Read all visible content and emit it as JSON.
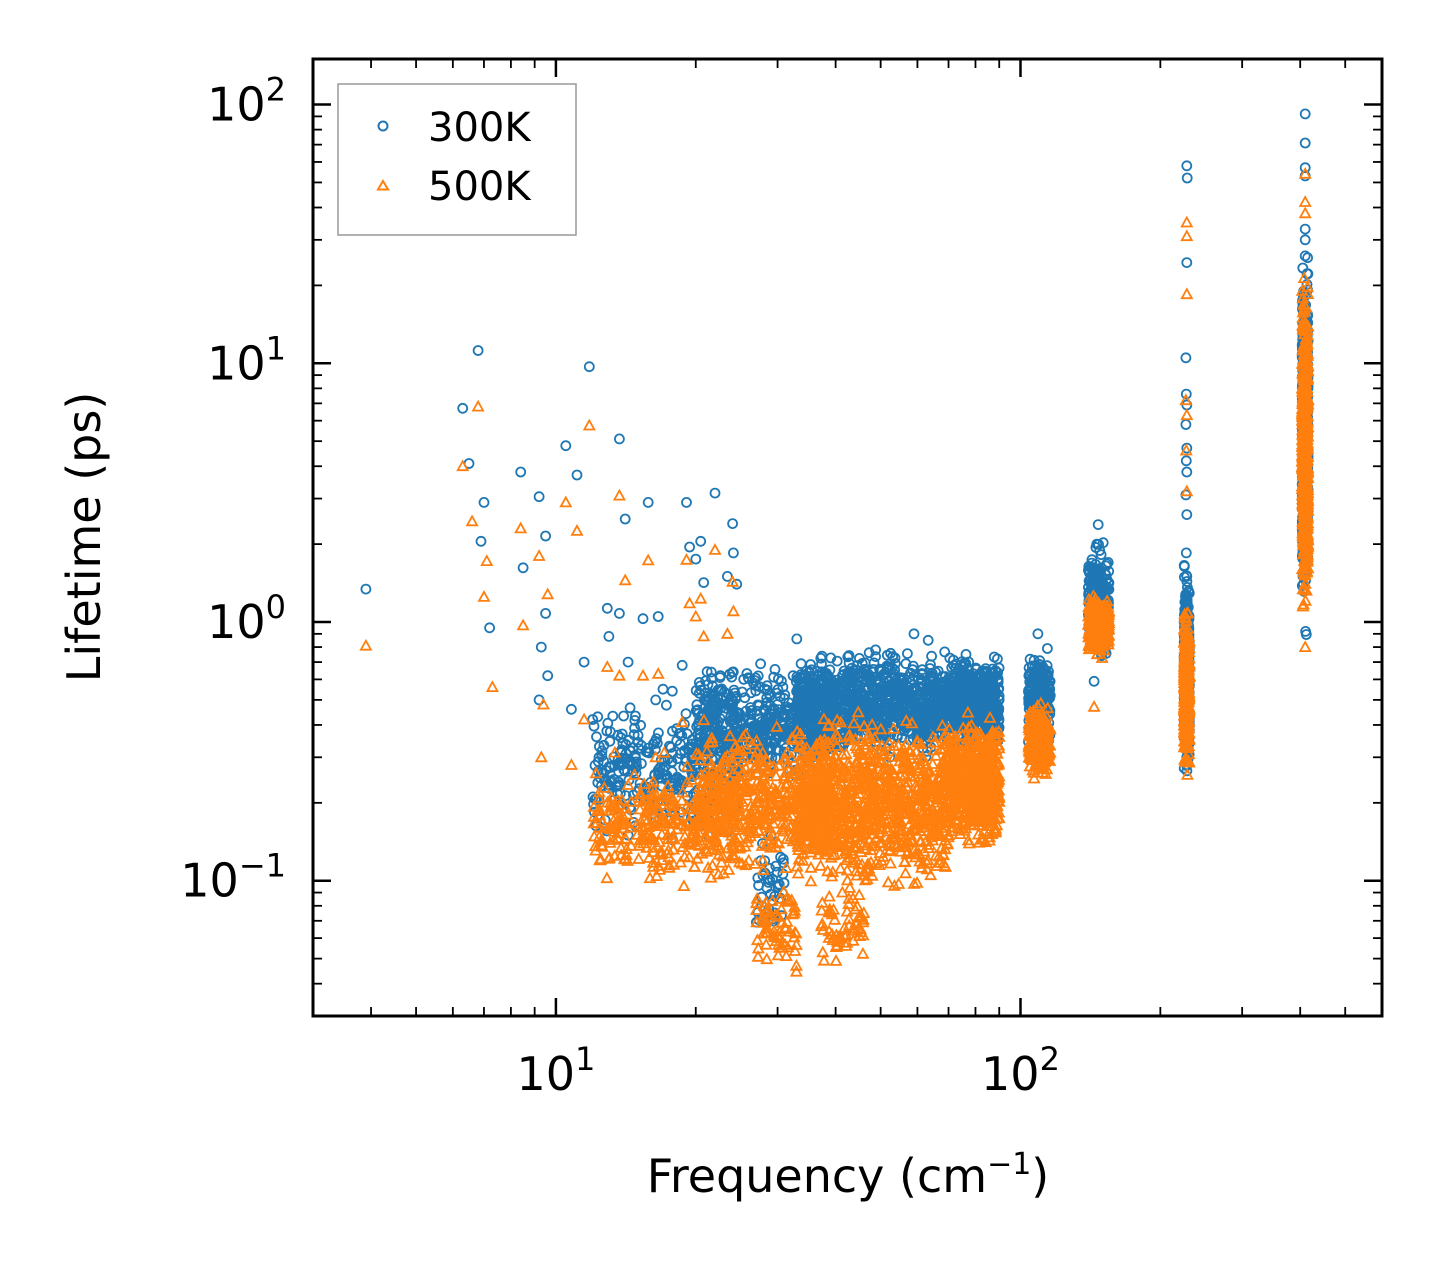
{
  "chart_data": {
    "type": "scatter",
    "x_scale": "log",
    "y_scale": "log",
    "xlabel": "Frequency (cm",
    "xlabel_sup": "−1",
    "xlabel_tail": ")",
    "ylabel": "Lifetime (ps)",
    "xlim": [
      3.0,
      600
    ],
    "ylim": [
      0.03,
      150
    ],
    "x_ticks": [
      {
        "base": "10",
        "exp": "1",
        "value": 10
      },
      {
        "base": "10",
        "exp": "2",
        "value": 100
      }
    ],
    "y_ticks": [
      {
        "base": "10",
        "exp": "−1",
        "value": 0.1
      },
      {
        "base": "10",
        "exp": "0",
        "value": 1
      },
      {
        "base": "10",
        "exp": "1",
        "value": 10
      },
      {
        "base": "10",
        "exp": "2",
        "value": 100
      }
    ],
    "legend_position": "top-left",
    "series": [
      {
        "name": "300K",
        "marker": "circle",
        "color": "#1f77b4",
        "points": [
          [
            3.9,
            1.34
          ],
          [
            6.3,
            6.7
          ],
          [
            6.5,
            4.1
          ],
          [
            6.8,
            11.2
          ],
          [
            6.9,
            2.05
          ],
          [
            7.0,
            2.9
          ],
          [
            7.2,
            0.95
          ],
          [
            8.4,
            3.8
          ],
          [
            8.5,
            1.62
          ],
          [
            9.2,
            3.05
          ],
          [
            9.2,
            0.5
          ],
          [
            9.3,
            0.8
          ],
          [
            9.5,
            1.08
          ],
          [
            9.5,
            2.15
          ],
          [
            9.6,
            0.62
          ],
          [
            10.5,
            4.8
          ],
          [
            10.8,
            0.46
          ],
          [
            11.1,
            3.7
          ],
          [
            11.5,
            0.7
          ],
          [
            11.8,
            9.7
          ],
          [
            12.0,
            0.42
          ],
          [
            12.3,
            0.43
          ],
          [
            12.9,
            1.13
          ],
          [
            13.0,
            0.88
          ],
          [
            13.7,
            1.08
          ],
          [
            13.7,
            5.1
          ],
          [
            14.1,
            2.5
          ],
          [
            14.3,
            0.7
          ],
          [
            15.4,
            1.03
          ],
          [
            15.8,
            2.9
          ],
          [
            16.4,
            0.5
          ],
          [
            16.6,
            1.05
          ],
          [
            17.0,
            0.55
          ],
          [
            17.4,
            0.25
          ],
          [
            17.8,
            0.54
          ],
          [
            18.7,
            0.68
          ],
          [
            19.1,
            2.9
          ],
          [
            19.4,
            1.95
          ],
          [
            20.0,
            1.75
          ],
          [
            20.5,
            2.05
          ],
          [
            20.8,
            1.42
          ],
          [
            21.6,
            0.64
          ],
          [
            22.0,
            3.15
          ],
          [
            22.6,
            0.62
          ],
          [
            23.4,
            1.5
          ],
          [
            24.0,
            2.4
          ],
          [
            24.1,
            1.85
          ],
          [
            24.5,
            1.4
          ],
          [
            33.0,
            0.86
          ],
          [
            59.0,
            0.9
          ],
          [
            63.3,
            0.85
          ],
          [
            109.0,
            0.9
          ],
          [
            147.0,
            2.38
          ],
          [
            146.0,
            2.0
          ],
          [
            144.0,
            0.59
          ],
          [
            228.0,
            58
          ],
          [
            228.5,
            52
          ],
          [
            228.0,
            24.5
          ],
          [
            227.0,
            10.5
          ],
          [
            227.5,
            7.6
          ],
          [
            228.0,
            6.9
          ],
          [
            227.0,
            5.8
          ],
          [
            228.0,
            4.7
          ],
          [
            227.5,
            4.2
          ],
          [
            228.0,
            3.8
          ],
          [
            227.0,
            3.1
          ],
          [
            228.0,
            2.6
          ],
          [
            227.5,
            1.85
          ],
          [
            228.0,
            1.5
          ],
          [
            410.0,
            92
          ],
          [
            410.0,
            71
          ],
          [
            410.0,
            57
          ],
          [
            410.0,
            53
          ],
          [
            410.0,
            33
          ],
          [
            410.0,
            30
          ],
          [
            410.0,
            26
          ]
        ],
        "clusters": [
          {
            "x": [
              12.0,
              25.0
            ],
            "y": [
              0.13,
              0.55
            ],
            "n": 320
          },
          {
            "x": [
              20.0,
              40.0
            ],
            "y": [
              0.22,
              0.75
            ],
            "n": 520
          },
          {
            "x": [
              27.0,
              31.0
            ],
            "y": [
              0.055,
              0.16
            ],
            "n": 40
          },
          {
            "x": [
              33.0,
              70.0
            ],
            "y": [
              0.28,
              0.85
            ],
            "n": 900
          },
          {
            "x": [
              70.0,
              90.0
            ],
            "y": [
              0.3,
              0.8
            ],
            "n": 520
          },
          {
            "x": [
              104.0,
              116.0
            ],
            "y": [
              0.28,
              0.88
            ],
            "n": 220
          },
          {
            "x": [
              140.0,
              155.0
            ],
            "y": [
              0.62,
              2.2
            ],
            "n": 260
          },
          {
            "x": [
              225.0,
              231.0
            ],
            "y": [
              0.23,
              1.9
            ],
            "n": 320
          },
          {
            "x": [
              404.0,
              416.0
            ],
            "y": [
              0.8,
              32.0
            ],
            "n": 520
          }
        ]
      },
      {
        "name": "500K",
        "marker": "triangle",
        "color": "#ff7f0e",
        "points": [
          [
            3.9,
            0.81
          ],
          [
            6.3,
            4.0
          ],
          [
            6.6,
            2.45
          ],
          [
            6.8,
            6.8
          ],
          [
            7.0,
            1.25
          ],
          [
            7.1,
            1.72
          ],
          [
            7.3,
            0.56
          ],
          [
            8.4,
            2.3
          ],
          [
            8.5,
            0.97
          ],
          [
            9.2,
            1.8
          ],
          [
            9.3,
            0.3
          ],
          [
            9.4,
            0.48
          ],
          [
            9.6,
            1.28
          ],
          [
            10.5,
            2.9
          ],
          [
            10.8,
            0.28
          ],
          [
            11.1,
            2.25
          ],
          [
            11.5,
            0.42
          ],
          [
            11.8,
            5.75
          ],
          [
            12.2,
            0.26
          ],
          [
            12.9,
            0.67
          ],
          [
            13.7,
            3.08
          ],
          [
            13.7,
            0.62
          ],
          [
            14.1,
            1.45
          ],
          [
            15.4,
            0.62
          ],
          [
            15.8,
            1.73
          ],
          [
            16.4,
            0.3
          ],
          [
            16.6,
            0.63
          ],
          [
            17.4,
            0.15
          ],
          [
            18.7,
            0.41
          ],
          [
            19.1,
            1.74
          ],
          [
            19.4,
            1.18
          ],
          [
            20.0,
            1.05
          ],
          [
            20.5,
            1.23
          ],
          [
            20.8,
            0.88
          ],
          [
            22.0,
            1.9
          ],
          [
            23.4,
            0.9
          ],
          [
            24.0,
            1.43
          ],
          [
            24.1,
            1.1
          ],
          [
            144.0,
            0.47
          ],
          [
            228.0,
            35
          ],
          [
            228.0,
            31
          ],
          [
            228.0,
            18.5
          ],
          [
            227.0,
            7.2
          ],
          [
            228.0,
            6.3
          ],
          [
            227.5,
            4.6
          ],
          [
            228.0,
            3.2
          ],
          [
            410.0,
            54
          ],
          [
            410.0,
            42
          ],
          [
            410.0,
            38
          ],
          [
            410.0,
            0.8
          ]
        ],
        "clusters": [
          {
            "x": [
              12.0,
              25.0
            ],
            "y": [
              0.085,
              0.32
            ],
            "n": 320
          },
          {
            "x": [
              20.0,
              40.0
            ],
            "y": [
              0.1,
              0.45
            ],
            "n": 520
          },
          {
            "x": [
              27.0,
              33.0
            ],
            "y": [
              0.034,
              0.12
            ],
            "n": 70
          },
          {
            "x": [
              37.0,
              46.0
            ],
            "y": [
              0.044,
              0.1
            ],
            "n": 60
          },
          {
            "x": [
              33.0,
              70.0
            ],
            "y": [
              0.08,
              0.5
            ],
            "n": 1000
          },
          {
            "x": [
              70.0,
              90.0
            ],
            "y": [
              0.12,
              0.48
            ],
            "n": 520
          },
          {
            "x": [
              104.0,
              116.0
            ],
            "y": [
              0.23,
              0.52
            ],
            "n": 220
          },
          {
            "x": [
              140.0,
              155.0
            ],
            "y": [
              0.7,
              1.35
            ],
            "n": 260
          },
          {
            "x": [
              225.0,
              231.0
            ],
            "y": [
              0.23,
              1.3
            ],
            "n": 320
          },
          {
            "x": [
              404.0,
              416.0
            ],
            "y": [
              0.8,
              27.0
            ],
            "n": 520
          }
        ]
      }
    ]
  }
}
